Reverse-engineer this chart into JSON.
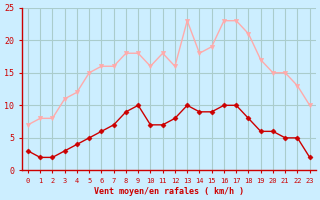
{
  "hours": [
    0,
    1,
    2,
    3,
    4,
    5,
    6,
    7,
    8,
    9,
    10,
    11,
    12,
    13,
    14,
    15,
    16,
    17,
    18,
    19,
    20,
    21,
    22,
    23
  ],
  "wind_avg": [
    3,
    2,
    2,
    3,
    4,
    5,
    6,
    7,
    9,
    10,
    7,
    7,
    8,
    10,
    9,
    9,
    10,
    10,
    8,
    6,
    6,
    5,
    5,
    2
  ],
  "wind_gust": [
    7,
    8,
    8,
    11,
    12,
    15,
    16,
    16,
    18,
    18,
    16,
    18,
    16,
    23,
    18,
    19,
    23,
    23,
    21,
    17,
    15,
    15,
    13,
    10
  ],
  "avg_color": "#cc0000",
  "gust_color": "#ffaaaa",
  "bg_color": "#cceeff",
  "grid_color": "#aacccc",
  "axis_color": "#cc0000",
  "xlabel": "Vent moyen/en rafales ( km/h )",
  "ylim": [
    0,
    25
  ],
  "yticks": [
    0,
    5,
    10,
    15,
    20,
    25
  ]
}
